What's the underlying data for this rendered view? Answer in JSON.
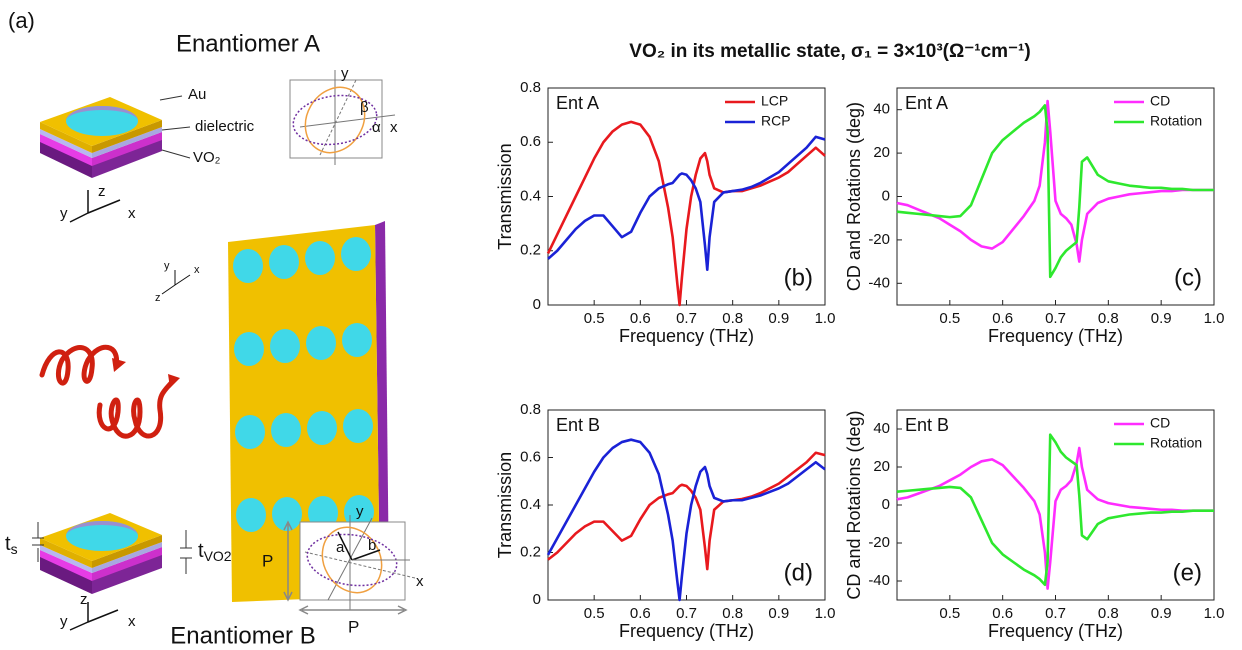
{
  "figure": {
    "title": "VO₂ in its metallic state, σ₁ = 3×10³(Ω⁻¹cm⁻¹)",
    "panel_a": {
      "label": "(a)",
      "enantiomer_a": "Enantiomer A",
      "enantiomer_b": "Enantiomer B",
      "layer_au": "Au",
      "layer_dielectric": "dielectric",
      "layer_vo2": "VO₂",
      "axis_x": "x",
      "axis_y": "y",
      "axis_z": "z",
      "angle_beta": "β",
      "angle_alpha": "α",
      "thickness_s": {
        "text": "t",
        "sub": "s"
      },
      "thickness_vo2": {
        "text": "t",
        "sub": "VO2"
      },
      "period": "P",
      "semi_axis_a": "a",
      "semi_axis_b": "b"
    }
  },
  "chart_data": [
    {
      "type": "line",
      "annotation": "Ent A",
      "panel_label": "(b)",
      "xlabel": "Frequency (THz)",
      "ylabel": "Transmission",
      "x": [
        0.4,
        0.42,
        0.44,
        0.46,
        0.48,
        0.5,
        0.52,
        0.54,
        0.56,
        0.58,
        0.6,
        0.62,
        0.64,
        0.66,
        0.67,
        0.68,
        0.685,
        0.69,
        0.7,
        0.71,
        0.72,
        0.73,
        0.74,
        0.745,
        0.75,
        0.76,
        0.78,
        0.8,
        0.82,
        0.84,
        0.86,
        0.88,
        0.9,
        0.92,
        0.94,
        0.96,
        0.98,
        1.0
      ],
      "series": [
        {
          "name": "LCP",
          "color": "#e8191e",
          "values": [
            0.19,
            0.26,
            0.33,
            0.4,
            0.47,
            0.54,
            0.6,
            0.64,
            0.665,
            0.675,
            0.665,
            0.62,
            0.53,
            0.36,
            0.25,
            0.08,
            0,
            0.1,
            0.28,
            0.4,
            0.48,
            0.54,
            0.56,
            0.53,
            0.48,
            0.43,
            0.415,
            0.42,
            0.42,
            0.43,
            0.44,
            0.455,
            0.47,
            0.49,
            0.52,
            0.55,
            0.58,
            0.55
          ]
        },
        {
          "name": "RCP",
          "color": "#1a22d6",
          "values": [
            0.17,
            0.2,
            0.24,
            0.28,
            0.31,
            0.33,
            0.33,
            0.29,
            0.25,
            0.27,
            0.34,
            0.4,
            0.43,
            0.445,
            0.45,
            0.47,
            0.48,
            0.485,
            0.48,
            0.46,
            0.43,
            0.38,
            0.22,
            0.13,
            0.25,
            0.38,
            0.415,
            0.42,
            0.425,
            0.435,
            0.45,
            0.47,
            0.49,
            0.52,
            0.55,
            0.58,
            0.62,
            0.61
          ]
        }
      ],
      "xlim": [
        0.4,
        1.0
      ],
      "xticks": [
        0.5,
        0.6,
        0.7,
        0.8,
        0.9,
        {
          "value": 1,
          "label": "1.0"
        }
      ],
      "ylim": [
        0,
        0.8
      ],
      "yticks": [
        0,
        0.2,
        0.4,
        0.6,
        0.8
      ],
      "legend": "upper right"
    },
    {
      "type": "line",
      "annotation": "Ent A",
      "panel_label": "(c)",
      "xlabel": "Frequency (THz)",
      "ylabel": "CD and Rotations (deg)",
      "x": [
        0.4,
        0.42,
        0.44,
        0.46,
        0.48,
        0.5,
        0.52,
        0.54,
        0.56,
        0.58,
        0.6,
        0.62,
        0.64,
        0.66,
        0.67,
        0.68,
        0.685,
        0.69,
        0.7,
        0.71,
        0.72,
        0.73,
        0.74,
        0.745,
        0.75,
        0.76,
        0.78,
        0.8,
        0.82,
        0.84,
        0.86,
        0.88,
        0.9,
        0.92,
        0.94,
        0.96,
        0.98,
        1.0
      ],
      "series": [
        {
          "name": "CD",
          "color": "#ff2cff",
          "values": [
            -3,
            -4,
            -6,
            -8,
            -10,
            -13,
            -16,
            -20,
            -23,
            -24,
            -21,
            -15,
            -9,
            -2,
            5,
            25,
            44,
            30,
            -2,
            -8,
            -10,
            -13,
            -22,
            -30,
            -20,
            -8,
            -3,
            -1,
            0,
            1,
            1.5,
            2,
            2.5,
            2.5,
            3,
            3,
            3,
            3
          ]
        },
        {
          "name": "Rotation",
          "color": "#2ee82e",
          "values": [
            -7,
            -7.5,
            -8,
            -8.5,
            -9,
            -9.5,
            -9,
            -4,
            8,
            20,
            26,
            30,
            34,
            37,
            39,
            42,
            30,
            -37,
            -33,
            -28,
            -25,
            -23,
            -21,
            -5,
            16,
            18,
            10,
            7,
            6,
            5,
            4.5,
            4,
            4,
            3.5,
            3.5,
            3,
            3,
            3
          ]
        }
      ],
      "xlim": [
        0.4,
        1.0
      ],
      "xticks": [
        0.5,
        0.6,
        0.7,
        0.8,
        0.9,
        {
          "value": 1,
          "label": "1.0"
        }
      ],
      "ylim": [
        -50,
        50
      ],
      "yticks": [
        -40,
        -20,
        0,
        20,
        40
      ],
      "legend": "upper right"
    },
    {
      "type": "line",
      "annotation": "Ent B",
      "panel_label": "(d)",
      "xlabel": "Frequency (THz)",
      "ylabel": "Transmission",
      "x": [
        0.4,
        0.42,
        0.44,
        0.46,
        0.48,
        0.5,
        0.52,
        0.54,
        0.56,
        0.58,
        0.6,
        0.62,
        0.64,
        0.66,
        0.67,
        0.68,
        0.685,
        0.69,
        0.7,
        0.71,
        0.72,
        0.73,
        0.74,
        0.745,
        0.75,
        0.76,
        0.78,
        0.8,
        0.82,
        0.84,
        0.86,
        0.88,
        0.9,
        0.92,
        0.94,
        0.96,
        0.98,
        1.0
      ],
      "series": [
        {
          "color": "#e8191e",
          "values": [
            0.17,
            0.2,
            0.24,
            0.28,
            0.31,
            0.33,
            0.33,
            0.29,
            0.25,
            0.27,
            0.34,
            0.4,
            0.43,
            0.445,
            0.45,
            0.47,
            0.48,
            0.485,
            0.48,
            0.46,
            0.43,
            0.38,
            0.22,
            0.13,
            0.25,
            0.38,
            0.415,
            0.42,
            0.425,
            0.435,
            0.45,
            0.47,
            0.49,
            0.52,
            0.55,
            0.58,
            0.62,
            0.61
          ]
        },
        {
          "color": "#1a22d6",
          "values": [
            0.19,
            0.26,
            0.33,
            0.4,
            0.47,
            0.54,
            0.6,
            0.64,
            0.665,
            0.675,
            0.665,
            0.62,
            0.53,
            0.36,
            0.25,
            0.08,
            0,
            0.1,
            0.28,
            0.4,
            0.48,
            0.54,
            0.56,
            0.53,
            0.48,
            0.43,
            0.415,
            0.42,
            0.42,
            0.43,
            0.44,
            0.455,
            0.47,
            0.49,
            0.52,
            0.55,
            0.58,
            0.55
          ]
        }
      ],
      "xlim": [
        0.4,
        1.0
      ],
      "xticks": [
        0.5,
        0.6,
        0.7,
        0.8,
        0.9,
        {
          "value": 1,
          "label": "1.0"
        }
      ],
      "ylim": [
        0,
        0.8
      ],
      "yticks": [
        0,
        0.2,
        0.4,
        0.6,
        0.8
      ]
    },
    {
      "type": "line",
      "annotation": "Ent B",
      "panel_label": "(e)",
      "xlabel": "Frequency (THz)",
      "ylabel": "CD and Rotations (deg)",
      "x": [
        0.4,
        0.42,
        0.44,
        0.46,
        0.48,
        0.5,
        0.52,
        0.54,
        0.56,
        0.58,
        0.6,
        0.62,
        0.64,
        0.66,
        0.67,
        0.68,
        0.685,
        0.69,
        0.7,
        0.71,
        0.72,
        0.73,
        0.74,
        0.745,
        0.75,
        0.76,
        0.78,
        0.8,
        0.82,
        0.84,
        0.86,
        0.88,
        0.9,
        0.92,
        0.94,
        0.96,
        0.98,
        1.0
      ],
      "series": [
        {
          "name": "CD",
          "color": "#ff2cff",
          "values": [
            3,
            4,
            6,
            8,
            10,
            13,
            16,
            20,
            23,
            24,
            21,
            15,
            9,
            2,
            -5,
            -25,
            -44,
            -30,
            2,
            8,
            10,
            13,
            22,
            30,
            20,
            8,
            3,
            1,
            0,
            -1,
            -1.5,
            -2,
            -2.5,
            -2.5,
            -3,
            -3,
            -3,
            -3
          ]
        },
        {
          "name": "Rotation",
          "color": "#2ee82e",
          "values": [
            7,
            7.5,
            8,
            8.5,
            9,
            9.5,
            9,
            4,
            -8,
            -20,
            -26,
            -30,
            -34,
            -37,
            -39,
            -42,
            -30,
            37,
            33,
            28,
            25,
            23,
            21,
            5,
            -16,
            -18,
            -10,
            -7,
            -6,
            -5,
            -4.5,
            -4,
            -4,
            -3.5,
            -3.5,
            -3,
            -3,
            -3
          ]
        }
      ],
      "xlim": [
        0.4,
        1.0
      ],
      "xticks": [
        0.5,
        0.6,
        0.7,
        0.8,
        0.9,
        {
          "value": 1,
          "label": "1.0"
        }
      ],
      "ylim": [
        -50,
        50
      ],
      "yticks": [
        -40,
        -20,
        0,
        20,
        40
      ],
      "legend": "upper right"
    }
  ]
}
